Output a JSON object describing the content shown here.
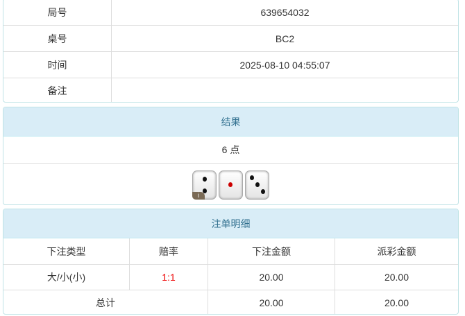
{
  "info": [
    {
      "label": "局号",
      "value": "639654032"
    },
    {
      "label": "桌号",
      "value": "BC2"
    },
    {
      "label": "时间",
      "value": "2025-08-10 04:55:07"
    },
    {
      "label": "备注",
      "value": ""
    }
  ],
  "result": {
    "title": "结果",
    "points": "6 点",
    "dice": [
      2,
      1,
      3
    ],
    "badge": "i"
  },
  "bets": {
    "title": "注单明细",
    "headers": [
      "下注类型",
      "赔率",
      "下注金额",
      "派彩金额"
    ],
    "rows": [
      {
        "type": "大/小(小)",
        "odds": "1:1",
        "amount": "20.00",
        "payout": "20.00"
      }
    ],
    "total": {
      "label": "总计",
      "amount": "20.00",
      "payout": "20.00"
    },
    "odds_color": "#e00000"
  }
}
